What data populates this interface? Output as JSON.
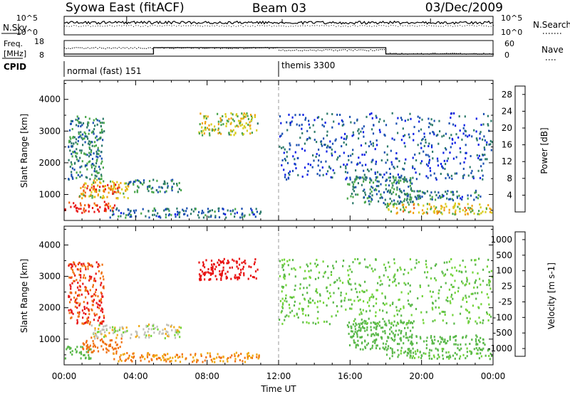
{
  "header": {
    "station": "Syowa East (fitACF)",
    "beam": "Beam 03",
    "date": "03/Dec/2009"
  },
  "top_panels": {
    "nsky_label": "N.Sky",
    "nsky_ticks": [
      "10^5",
      "10^0"
    ],
    "nsearch_label": "N.Search",
    "nsearch_ticks": [
      "10^5",
      "10^0"
    ],
    "freq_label_lines": [
      "Freq.",
      "[MHz]"
    ],
    "freq_ticks": [
      "18",
      "8"
    ],
    "nave_label": "Nave",
    "nave_ticks": [
      "60",
      "0"
    ],
    "cpid_label": "CPID",
    "cpid_segments": [
      {
        "name": "normal (fast) 151",
        "start_hour": 0,
        "end_hour": 12
      },
      {
        "name": "themis 3300",
        "start_hour": 12,
        "end_hour": 24
      }
    ]
  },
  "chart_data": [
    {
      "type": "heatmap",
      "title": "Power",
      "xlabel": "Time UT",
      "ylabel": "Slant Range [km]",
      "x_ticks": [
        "00:00",
        "04:00",
        "08:00",
        "12:00",
        "16:00",
        "20:00",
        "00:00"
      ],
      "x_range_hours": [
        0,
        24
      ],
      "y_ticks": [
        "1000",
        "2000",
        "3000",
        "4000"
      ],
      "ylim": [
        180,
        4600
      ],
      "colorbar": {
        "label": "Power [dB]",
        "ticks": [
          "4",
          "8",
          "12",
          "16",
          "20",
          "24",
          "28"
        ],
        "range": [
          0,
          30
        ],
        "colors": [
          "#0b1ee6",
          "#1a4fb0",
          "#2d7a6a",
          "#4aa64a",
          "#d8cc1e",
          "#f0a010",
          "#f06010",
          "#e81414"
        ]
      },
      "echo_regions": [
        {
          "t_start": 0.0,
          "t_end": 2.8,
          "r_start": 450,
          "r_end": 800,
          "value": 27
        },
        {
          "t_start": 0.8,
          "t_end": 3.6,
          "r_start": 900,
          "r_end": 1500,
          "value": 18
        },
        {
          "t_start": 1.0,
          "t_end": 3.0,
          "r_start": 1050,
          "r_end": 1350,
          "value": 26
        },
        {
          "t_start": 0.2,
          "t_end": 2.2,
          "r_start": 1500,
          "r_end": 3500,
          "value": 10
        },
        {
          "t_start": 3.5,
          "t_end": 6.5,
          "r_start": 1100,
          "r_end": 1500,
          "value": 10
        },
        {
          "t_start": 2.5,
          "t_end": 11.0,
          "r_start": 300,
          "r_end": 600,
          "value": 8
        },
        {
          "t_start": 7.5,
          "t_end": 10.8,
          "r_start": 2900,
          "r_end": 3600,
          "value": 16
        },
        {
          "t_start": 15.8,
          "t_end": 19.5,
          "r_start": 700,
          "r_end": 1600,
          "value": 10
        },
        {
          "t_start": 18.0,
          "t_end": 24.0,
          "r_start": 400,
          "r_end": 750,
          "value": 18
        },
        {
          "t_start": 19.0,
          "t_end": 23.5,
          "r_start": 850,
          "r_end": 1150,
          "value": 8
        },
        {
          "t_start": 12.0,
          "t_end": 24.0,
          "r_start": 1500,
          "r_end": 3600,
          "value": 6
        }
      ]
    },
    {
      "type": "heatmap",
      "title": "Velocity",
      "xlabel": "Time UT",
      "ylabel": "Slant Range [km]",
      "x_ticks": [
        "00:00",
        "04:00",
        "08:00",
        "12:00",
        "16:00",
        "20:00",
        "00:00"
      ],
      "x_range_hours": [
        0,
        24
      ],
      "y_ticks": [
        "1000",
        "2000",
        "3000",
        "4000"
      ],
      "ylim": [
        180,
        4600
      ],
      "colorbar": {
        "label": "Velocity [m s-1]",
        "ticks": [
          "1000",
          "500",
          "100",
          "25",
          "-25",
          "-100",
          "-500",
          "-1000"
        ],
        "range": [
          -1200,
          1200
        ],
        "colors": [
          "#1a2eb0",
          "#2d8a6a",
          "#5ab84a",
          "#72d438",
          "#c0c0b8",
          "#f0a812",
          "#f07010",
          "#e81414"
        ]
      },
      "echo_regions": [
        {
          "t_start": 0.0,
          "t_end": 1.6,
          "r_start": 400,
          "r_end": 800,
          "value": 150
        },
        {
          "t_start": 1.0,
          "t_end": 3.2,
          "r_start": 600,
          "r_end": 1100,
          "value": -120
        },
        {
          "t_start": 1.5,
          "t_end": 6.5,
          "r_start": 1050,
          "r_end": 1500,
          "value": 0
        },
        {
          "t_start": 0.2,
          "t_end": 2.2,
          "r_start": 1500,
          "r_end": 3500,
          "value": -300
        },
        {
          "t_start": 2.5,
          "t_end": 11.0,
          "r_start": 300,
          "r_end": 600,
          "value": -60
        },
        {
          "t_start": 7.5,
          "t_end": 10.8,
          "r_start": 2900,
          "r_end": 3600,
          "value": -600
        },
        {
          "t_start": 15.8,
          "t_end": 19.5,
          "r_start": 700,
          "r_end": 1600,
          "value": 90
        },
        {
          "t_start": 18.0,
          "t_end": 24.0,
          "r_start": 400,
          "r_end": 750,
          "value": 70
        },
        {
          "t_start": 19.0,
          "t_end": 23.5,
          "r_start": 850,
          "r_end": 1150,
          "value": 150
        },
        {
          "t_start": 12.0,
          "t_end": 24.0,
          "r_start": 1500,
          "r_end": 3600,
          "value": 60
        }
      ]
    }
  ]
}
